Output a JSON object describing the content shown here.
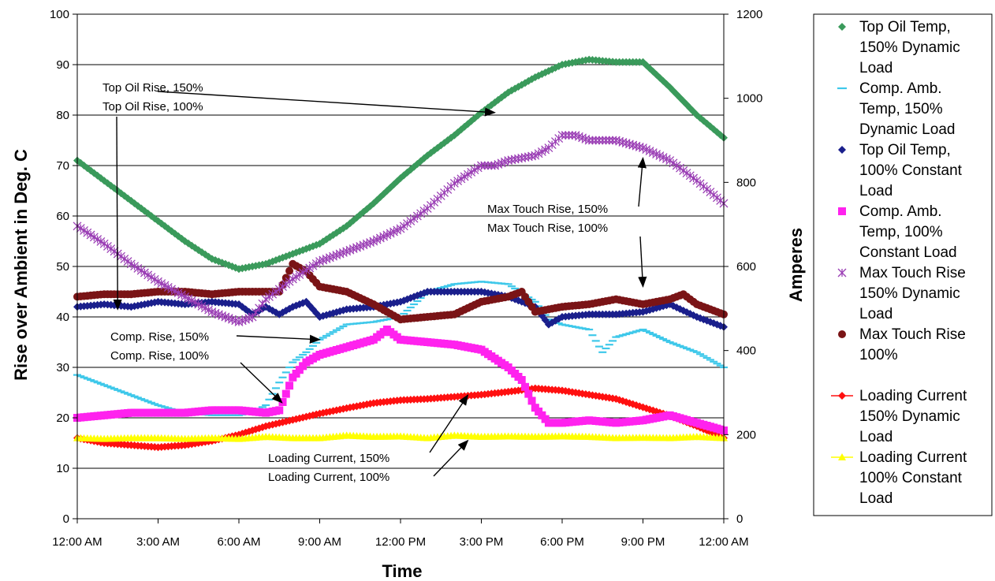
{
  "chart_data": {
    "type": "scatter",
    "xlabel": "Time",
    "ylabel": "Rise over Ambient in Deg. C",
    "y2label": "Amperes",
    "xlim": [
      0,
      24
    ],
    "ylim": [
      0,
      100
    ],
    "y2lim": [
      0,
      1200
    ],
    "x_ticks": [
      0,
      3,
      6,
      9,
      12,
      15,
      18,
      21,
      24
    ],
    "x_tick_labels": [
      "12:00 AM",
      "3:00 AM",
      "6:00 AM",
      "9:00 AM",
      "12:00 PM",
      "3:00 PM",
      "6:00 PM",
      "9:00 PM",
      "12:00 AM"
    ],
    "y_ticks": [
      0,
      10,
      20,
      30,
      40,
      50,
      60,
      70,
      80,
      90,
      100
    ],
    "y2_ticks": [
      0,
      200,
      400,
      600,
      800,
      1000,
      1200
    ],
    "grid": "horizontal",
    "legend_position": "right",
    "series": [
      {
        "name": "Top Oil Temp, 150% Dynamic Load",
        "marker": "diamond",
        "color": "#3a9a5b",
        "axis": "left",
        "x": [
          0,
          1,
          2,
          3,
          4,
          5,
          6,
          7,
          8,
          9,
          10,
          11,
          12,
          13,
          14,
          15,
          16,
          17,
          18,
          19,
          20,
          21,
          22,
          23,
          24
        ],
        "y": [
          71,
          67,
          63,
          59,
          55,
          51.5,
          49.5,
          50.5,
          52.5,
          54.5,
          58,
          62.5,
          67.5,
          72,
          76,
          80.5,
          84.5,
          87.5,
          90,
          91,
          90.5,
          90.5,
          85.5,
          80,
          75.5
        ]
      },
      {
        "name": "Comp. Amb. Temp, 150% Dynamic Load",
        "marker": "dash",
        "color": "#3ec8ea",
        "axis": "left",
        "x": [
          0,
          1,
          2,
          3,
          4,
          5,
          6,
          6.5,
          7,
          7.5,
          8,
          8.5,
          9,
          10,
          11,
          12,
          13,
          14,
          15,
          16,
          17,
          17.5,
          18,
          19,
          19.5,
          20,
          21,
          22,
          23,
          24
        ],
        "y": [
          28.5,
          26.5,
          24.5,
          22.5,
          21,
          20.5,
          20.5,
          21,
          22.5,
          27,
          31,
          33,
          35.5,
          38.5,
          39,
          40,
          45,
          46.5,
          47,
          46.5,
          43,
          39.5,
          38.5,
          37.5,
          33,
          36,
          37.5,
          35,
          33,
          30
        ]
      },
      {
        "name": "Top Oil Temp, 100% Constant Load",
        "marker": "diamond",
        "color": "#1a1f8c",
        "axis": "left",
        "x": [
          0,
          1,
          2,
          3,
          4,
          5,
          6,
          6.5,
          7,
          7.5,
          8,
          8.5,
          9,
          10,
          11,
          12,
          13,
          14,
          15,
          16,
          17,
          17.5,
          18,
          19,
          20,
          21,
          22,
          23,
          24
        ],
        "y": [
          42,
          42.5,
          42,
          43,
          42.5,
          43,
          42.5,
          40.5,
          42,
          40.5,
          42,
          43,
          40,
          41.5,
          42,
          43,
          45,
          45,
          45,
          44,
          42,
          38.5,
          40,
          40.5,
          40.5,
          41,
          42.5,
          40,
          38
        ]
      },
      {
        "name": "Comp. Amb. Temp, 100% Constant Load",
        "marker": "square",
        "color": "#ff22ee",
        "axis": "left",
        "x": [
          0,
          1,
          2,
          3,
          4,
          5,
          6,
          7,
          7.5,
          8,
          8.5,
          9,
          10,
          11,
          11.5,
          12,
          13,
          14,
          15,
          16,
          16.5,
          17,
          17.5,
          18,
          19,
          20,
          21,
          22,
          23,
          24
        ],
        "y": [
          20,
          20.5,
          21,
          21,
          21,
          21.5,
          21.5,
          21,
          21.5,
          28,
          31,
          32.5,
          34,
          35.5,
          37.5,
          35.5,
          35,
          34.5,
          33.5,
          30,
          27.5,
          22,
          19,
          19,
          19.5,
          19,
          19.5,
          20.5,
          19,
          17.5
        ]
      },
      {
        "name": "Max Touch Rise 150% Dynamic Load",
        "marker": "asterisk",
        "color": "#9b3fb5",
        "axis": "left",
        "x": [
          0,
          1,
          2,
          3,
          4,
          5,
          6,
          6.5,
          7,
          8,
          9,
          10,
          11,
          12,
          13,
          14,
          15,
          15.5,
          16,
          17,
          17.5,
          18,
          18.5,
          19,
          19.5,
          20,
          21,
          22,
          23,
          24
        ],
        "y": [
          58,
          54.5,
          50.5,
          47,
          44,
          41,
          39,
          40,
          43.5,
          47.5,
          51,
          53,
          55,
          57.5,
          61.5,
          66.5,
          70,
          70,
          71,
          72,
          73.5,
          76,
          76,
          75,
          75,
          75,
          73.5,
          71,
          67,
          62.5
        ]
      },
      {
        "name": "Max Touch Rise 100%",
        "marker": "circle",
        "color": "#7a1416",
        "axis": "left",
        "x": [
          0,
          1,
          2,
          3,
          4,
          5,
          6,
          7,
          7.5,
          8,
          8.5,
          9,
          10,
          11,
          12,
          13,
          14,
          15,
          16,
          16.5,
          17,
          18,
          19,
          20,
          21,
          22,
          22.5,
          23,
          24
        ],
        "y": [
          44,
          44.5,
          44.5,
          45,
          45,
          44.5,
          45,
          45,
          45,
          50.5,
          49,
          46,
          45,
          42.5,
          39.5,
          40,
          40.5,
          43,
          44,
          45,
          41,
          42,
          42.5,
          43.5,
          42.5,
          43.5,
          44.5,
          42.5,
          40.5
        ]
      },
      {
        "name": "Loading Current 150% Dynamic Load",
        "marker": "diamond",
        "color": "#ff1010",
        "axis": "right",
        "x": [
          0,
          1,
          2,
          3,
          4,
          5,
          6,
          7,
          8,
          9,
          10,
          11,
          12,
          13,
          14,
          15,
          16,
          17,
          18,
          19,
          20,
          21,
          22,
          23,
          24
        ],
        "y": [
          192,
          180,
          175,
          170,
          175,
          185,
          200,
          220,
          235,
          250,
          263,
          275,
          282,
          285,
          290,
          295,
          302,
          310,
          305,
          295,
          285,
          265,
          245,
          220,
          192
        ]
      },
      {
        "name": "Loading Current 100% Constant Load",
        "marker": "triangle",
        "color": "#ffff00",
        "axis": "right",
        "x": [
          0,
          1,
          2,
          3,
          4,
          5,
          6,
          7,
          8,
          9,
          10,
          11,
          12,
          13,
          14,
          15,
          16,
          17,
          18,
          19,
          20,
          21,
          22,
          23,
          24
        ],
        "y": [
          192,
          190,
          192,
          192,
          190,
          192,
          190,
          195,
          192,
          192,
          198,
          195,
          196,
          192,
          198,
          195,
          196,
          195,
          196,
          195,
          192,
          193,
          192,
          195,
          192
        ]
      }
    ],
    "legend": [
      {
        "label": "Top Oil Temp, 150% Dynamic Load",
        "lines": [
          "Top Oil Temp,",
          "150% Dynamic",
          "Load"
        ],
        "marker": "diamond",
        "color": "#3a9a5b"
      },
      {
        "label": "Comp. Amb. Temp, 150% Dynamic Load",
        "lines": [
          "Comp. Amb.",
          "Temp, 150%",
          "Dynamic Load"
        ],
        "marker": "dash",
        "color": "#3ec8ea"
      },
      {
        "label": "Top Oil Temp, 100% Constant Load",
        "lines": [
          "Top Oil Temp,",
          "100% Constant",
          "Load"
        ],
        "marker": "diamond",
        "color": "#1a1f8c"
      },
      {
        "label": "Comp. Amb. Temp, 100% Constant Load",
        "lines": [
          "Comp. Amb.",
          "Temp, 100%",
          "Constant Load"
        ],
        "marker": "square",
        "color": "#ff22ee"
      },
      {
        "label": "Max Touch Rise 150% Dynamic Load",
        "lines": [
          "Max Touch Rise",
          "150% Dynamic",
          "Load"
        ],
        "marker": "asterisk",
        "color": "#9b3fb5"
      },
      {
        "label": "Max Touch Rise 100%",
        "lines": [
          "Max Touch Rise",
          "100%"
        ],
        "marker": "circle",
        "color": "#7a1416"
      },
      {
        "label": "Loading Current 150% Dynamic Load",
        "lines": [
          "Loading Current",
          "150% Dynamic",
          "Load"
        ],
        "marker": "diamond",
        "color": "#ff1010"
      },
      {
        "label": "Loading Current 100% Constant Load",
        "lines": [
          "Loading Current",
          "100% Constant",
          "Load"
        ],
        "marker": "triangle",
        "color": "#ffff00"
      }
    ],
    "annotations": [
      {
        "text": "Top Oil Rise, 150%",
        "arrow_to": [
          15.5,
          80.5
        ]
      },
      {
        "text": "Top Oil Rise, 100%",
        "arrow_to": [
          1.5,
          41.5
        ]
      },
      {
        "text": "Max Touch Rise, 150%",
        "arrow_to": [
          21,
          71.5
        ]
      },
      {
        "text": "Max Touch Rise, 100%",
        "arrow_to": [
          21,
          46
        ]
      },
      {
        "text": "Comp. Rise, 150%",
        "arrow_to": [
          9,
          35.5
        ]
      },
      {
        "text": "Comp. Rise, 100%",
        "arrow_to": [
          7.6,
          23
        ]
      },
      {
        "text": "Loading Current, 150%",
        "arrow_to": [
          14.5,
          24.5
        ]
      },
      {
        "text": "Loading Current, 100%",
        "arrow_to": [
          14.5,
          15.5
        ]
      }
    ]
  }
}
